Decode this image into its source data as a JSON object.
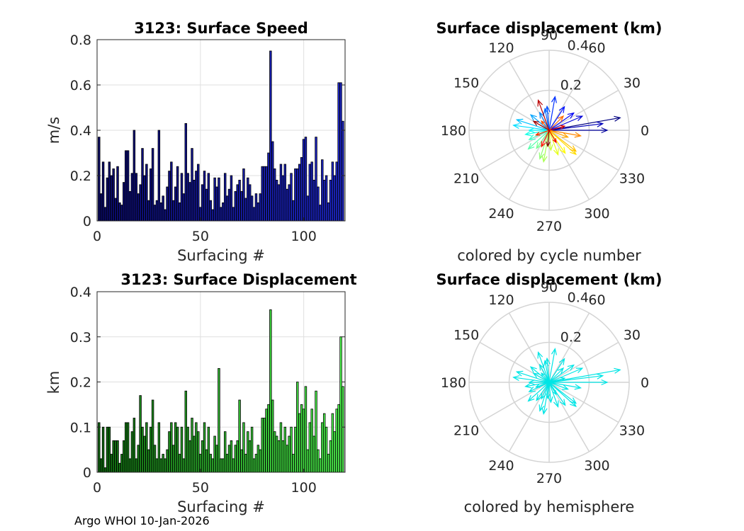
{
  "footer": "Argo WHOI 10-Jan-2026",
  "chart_data": [
    {
      "type": "bar",
      "id": "speed",
      "title": "3123: Surface Speed",
      "xlabel": "Surfacing #",
      "ylabel": "m/s",
      "xlim": [
        0,
        120
      ],
      "ylim": [
        0,
        0.8
      ],
      "xticks": [
        0,
        50,
        100
      ],
      "yticks": [
        0,
        0.2,
        0.4,
        0.6,
        0.8
      ],
      "ytick_labels": [
        "0",
        "0.2",
        "0.4",
        "0.6",
        "0.8"
      ],
      "grid": true,
      "bar_color_dark": "#0a0a6e",
      "bar_color_light": "#1e28d2",
      "x": [
        1,
        2,
        3,
        4,
        5,
        6,
        7,
        8,
        9,
        10,
        11,
        12,
        13,
        14,
        15,
        16,
        17,
        18,
        19,
        20,
        21,
        22,
        23,
        24,
        25,
        26,
        27,
        28,
        29,
        30,
        31,
        32,
        33,
        34,
        35,
        36,
        37,
        38,
        39,
        40,
        41,
        42,
        43,
        44,
        45,
        46,
        47,
        48,
        49,
        50,
        51,
        52,
        53,
        54,
        55,
        56,
        57,
        58,
        59,
        60,
        61,
        62,
        63,
        64,
        65,
        66,
        67,
        68,
        69,
        70,
        71,
        72,
        73,
        74,
        75,
        76,
        77,
        78,
        79,
        80,
        81,
        82,
        83,
        84,
        85,
        86,
        87,
        88,
        89,
        90,
        91,
        92,
        93,
        94,
        95,
        96,
        97,
        98,
        99,
        100,
        101,
        102,
        103,
        104,
        105,
        106,
        107,
        108,
        109,
        110,
        111,
        112,
        113,
        114,
        115,
        116,
        117,
        118,
        119
      ],
      "values": [
        0.37,
        0.12,
        0.26,
        0.06,
        0.19,
        0.26,
        0.2,
        0.23,
        0.1,
        0.24,
        0.08,
        0.07,
        0.17,
        0.31,
        0.31,
        0.13,
        0.21,
        0.4,
        0.21,
        0.12,
        0.16,
        0.32,
        0.2,
        0.25,
        0.09,
        0.23,
        0.32,
        0.07,
        0.09,
        0.4,
        0.08,
        0.11,
        0.05,
        0.15,
        0.22,
        0.26,
        0.09,
        0.15,
        0.24,
        0.08,
        0.21,
        0.12,
        0.43,
        0.21,
        0.17,
        0.32,
        0.18,
        0.22,
        0.25,
        0.06,
        0.16,
        0.22,
        0.14,
        0.21,
        0.09,
        0.05,
        0.19,
        0.15,
        0.19,
        0.06,
        0.08,
        0.21,
        0.11,
        0.14,
        0.2,
        0.06,
        0.13,
        0.16,
        0.18,
        0.13,
        0.23,
        0.1,
        0.19,
        0.16,
        0.11,
        0.06,
        0.12,
        0.08,
        0.12,
        0.24,
        0.24,
        0.24,
        0.3,
        0.75,
        0.35,
        0.23,
        0.18,
        0.16,
        0.25,
        0.2,
        0.25,
        0.14,
        0.16,
        0.21,
        0.09,
        0.23,
        0.23,
        0.25,
        0.28,
        0.36,
        0.37,
        0.11,
        0.25,
        0.26,
        0.18,
        0.37,
        0.15,
        0.07,
        0.27,
        0.18,
        0.2,
        0.08,
        0.18,
        0.26,
        0.2,
        0.26,
        0.61,
        0.61,
        0.44
      ]
    },
    {
      "type": "bar",
      "id": "displacement",
      "title": "3123: Surface Displacement",
      "xlabel": "Surfacing #",
      "ylabel": "km",
      "xlim": [
        0,
        120
      ],
      "ylim": [
        0,
        0.4
      ],
      "xticks": [
        0,
        50,
        100
      ],
      "yticks": [
        0,
        0.1,
        0.2,
        0.3,
        0.4
      ],
      "ytick_labels": [
        "0",
        "0.1",
        "0.2",
        "0.3",
        "0.4"
      ],
      "grid": true,
      "bar_color_dark": "#0f6e0f",
      "bar_color_light": "#50ff50",
      "x": [
        1,
        2,
        3,
        4,
        5,
        6,
        7,
        8,
        9,
        10,
        11,
        12,
        13,
        14,
        15,
        16,
        17,
        18,
        19,
        20,
        21,
        22,
        23,
        24,
        25,
        26,
        27,
        28,
        29,
        30,
        31,
        32,
        33,
        34,
        35,
        36,
        37,
        38,
        39,
        40,
        41,
        42,
        43,
        44,
        45,
        46,
        47,
        48,
        49,
        50,
        51,
        52,
        53,
        54,
        55,
        56,
        57,
        58,
        59,
        60,
        61,
        62,
        63,
        64,
        65,
        66,
        67,
        68,
        69,
        70,
        71,
        72,
        73,
        74,
        75,
        76,
        77,
        78,
        79,
        80,
        81,
        82,
        83,
        84,
        85,
        86,
        87,
        88,
        89,
        90,
        91,
        92,
        93,
        94,
        95,
        96,
        97,
        98,
        99,
        100,
        101,
        102,
        103,
        104,
        105,
        106,
        107,
        108,
        109,
        110,
        111,
        112,
        113,
        114,
        115,
        116,
        117,
        118,
        119
      ],
      "values": [
        0.11,
        0.03,
        0.1,
        0.01,
        0.1,
        0.1,
        0.04,
        0.07,
        0.07,
        0.07,
        0.02,
        0.04,
        0.07,
        0.11,
        0.11,
        0.03,
        0.09,
        0.12,
        0.03,
        0.06,
        0.17,
        0.1,
        0.08,
        0.11,
        0.05,
        0.1,
        0.16,
        0.06,
        0.03,
        0.11,
        0.03,
        0.04,
        0.03,
        0.05,
        0.09,
        0.11,
        0.06,
        0.11,
        0.1,
        0.04,
        0.1,
        0.03,
        0.18,
        0.1,
        0.07,
        0.12,
        0.08,
        0.11,
        0.09,
        0.04,
        0.07,
        0.11,
        0.05,
        0.1,
        0.04,
        0.03,
        0.08,
        0.06,
        0.23,
        0.03,
        0.03,
        0.09,
        0.04,
        0.06,
        0.07,
        0.03,
        0.06,
        0.07,
        0.16,
        0.05,
        0.11,
        0.04,
        0.09,
        0.07,
        0.1,
        0.03,
        0.04,
        0.06,
        0.05,
        0.12,
        0.12,
        0.14,
        0.15,
        0.36,
        0.16,
        0.09,
        0.08,
        0.07,
        0.11,
        0.07,
        0.1,
        0.06,
        0.08,
        0.1,
        0.04,
        0.1,
        0.2,
        0.13,
        0.15,
        0.14,
        0.19,
        0.05,
        0.11,
        0.14,
        0.08,
        0.18,
        0.05,
        0.03,
        0.11,
        0.13,
        0.1,
        0.04,
        0.07,
        0.13,
        0.09,
        0.14,
        0.15,
        0.3,
        0.19
      ]
    },
    {
      "type": "polar",
      "id": "compass-cycle",
      "title": "Surface displacement (km)",
      "caption": "colored by cycle number",
      "rlim": [
        0,
        0.4
      ],
      "rticks": [
        0.2,
        0.4
      ],
      "rtick_labels": [
        "0.2",
        "0.4"
      ],
      "theta_ticks": [
        0,
        30,
        60,
        90,
        120,
        150,
        180,
        210,
        240,
        270,
        300,
        330
      ],
      "coloring": "jet-by-cycle",
      "vectors_km": [
        {
          "dir_deg": 10,
          "r": 0.36
        },
        {
          "dir_deg": 0,
          "r": 0.29
        },
        {
          "dir_deg": 7,
          "r": 0.27
        },
        {
          "dir_deg": 23,
          "r": 0.18
        },
        {
          "dir_deg": 35,
          "r": 0.15
        },
        {
          "dir_deg": 57,
          "r": 0.14
        },
        {
          "dir_deg": 80,
          "r": 0.17
        },
        {
          "dir_deg": 95,
          "r": 0.12
        },
        {
          "dir_deg": 101,
          "r": 0.11
        },
        {
          "dir_deg": 118,
          "r": 0.1
        },
        {
          "dir_deg": 140,
          "r": 0.12
        },
        {
          "dir_deg": 162,
          "r": 0.17
        },
        {
          "dir_deg": 172,
          "r": 0.18
        },
        {
          "dir_deg": 180,
          "r": 0.1
        },
        {
          "dir_deg": 190,
          "r": 0.12
        },
        {
          "dir_deg": 205,
          "r": 0.11
        },
        {
          "dir_deg": 222,
          "r": 0.14
        },
        {
          "dir_deg": 235,
          "r": 0.11
        },
        {
          "dir_deg": 252,
          "r": 0.15
        },
        {
          "dir_deg": 260,
          "r": 0.16
        },
        {
          "dir_deg": 275,
          "r": 0.1
        },
        {
          "dir_deg": 290,
          "r": 0.13
        },
        {
          "dir_deg": 305,
          "r": 0.14
        },
        {
          "dir_deg": 318,
          "r": 0.18
        },
        {
          "dir_deg": 322,
          "r": 0.17
        },
        {
          "dir_deg": 340,
          "r": 0.1
        },
        {
          "dir_deg": 350,
          "r": 0.16
        },
        {
          "dir_deg": 45,
          "r": 0.1
        },
        {
          "dir_deg": 130,
          "r": 0.06
        },
        {
          "dir_deg": 200,
          "r": 0.07
        },
        {
          "dir_deg": 245,
          "r": 0.09
        },
        {
          "dir_deg": 300,
          "r": 0.07
        },
        {
          "dir_deg": 15,
          "r": 0.08
        },
        {
          "dir_deg": 110,
          "r": 0.16
        },
        {
          "dir_deg": 150,
          "r": 0.09
        },
        {
          "dir_deg": 265,
          "r": 0.08
        }
      ]
    },
    {
      "type": "polar",
      "id": "compass-hemisphere",
      "title": "Surface displacement (km)",
      "caption": "colored by hemisphere",
      "rlim": [
        0,
        0.4
      ],
      "rticks": [
        0.2,
        0.4
      ],
      "rtick_labels": [
        "0.2",
        "0.4"
      ],
      "theta_ticks": [
        0,
        30,
        60,
        90,
        120,
        150,
        180,
        210,
        240,
        270,
        300,
        330
      ],
      "arrow_color": "#00e5e5",
      "vectors_km": [
        {
          "dir_deg": 10,
          "r": 0.36
        },
        {
          "dir_deg": 0,
          "r": 0.29
        },
        {
          "dir_deg": 7,
          "r": 0.27
        },
        {
          "dir_deg": 23,
          "r": 0.18
        },
        {
          "dir_deg": 35,
          "r": 0.15
        },
        {
          "dir_deg": 57,
          "r": 0.14
        },
        {
          "dir_deg": 80,
          "r": 0.17
        },
        {
          "dir_deg": 95,
          "r": 0.12
        },
        {
          "dir_deg": 101,
          "r": 0.11
        },
        {
          "dir_deg": 118,
          "r": 0.1
        },
        {
          "dir_deg": 140,
          "r": 0.12
        },
        {
          "dir_deg": 162,
          "r": 0.17
        },
        {
          "dir_deg": 172,
          "r": 0.18
        },
        {
          "dir_deg": 180,
          "r": 0.1
        },
        {
          "dir_deg": 190,
          "r": 0.12
        },
        {
          "dir_deg": 205,
          "r": 0.11
        },
        {
          "dir_deg": 222,
          "r": 0.14
        },
        {
          "dir_deg": 235,
          "r": 0.11
        },
        {
          "dir_deg": 252,
          "r": 0.15
        },
        {
          "dir_deg": 260,
          "r": 0.16
        },
        {
          "dir_deg": 275,
          "r": 0.1
        },
        {
          "dir_deg": 290,
          "r": 0.13
        },
        {
          "dir_deg": 305,
          "r": 0.14
        },
        {
          "dir_deg": 318,
          "r": 0.18
        },
        {
          "dir_deg": 322,
          "r": 0.17
        },
        {
          "dir_deg": 340,
          "r": 0.1
        },
        {
          "dir_deg": 350,
          "r": 0.16
        },
        {
          "dir_deg": 45,
          "r": 0.1
        },
        {
          "dir_deg": 130,
          "r": 0.06
        },
        {
          "dir_deg": 200,
          "r": 0.07
        },
        {
          "dir_deg": 245,
          "r": 0.09
        },
        {
          "dir_deg": 300,
          "r": 0.07
        },
        {
          "dir_deg": 15,
          "r": 0.08
        },
        {
          "dir_deg": 110,
          "r": 0.16
        },
        {
          "dir_deg": 150,
          "r": 0.09
        },
        {
          "dir_deg": 265,
          "r": 0.08
        }
      ]
    }
  ]
}
